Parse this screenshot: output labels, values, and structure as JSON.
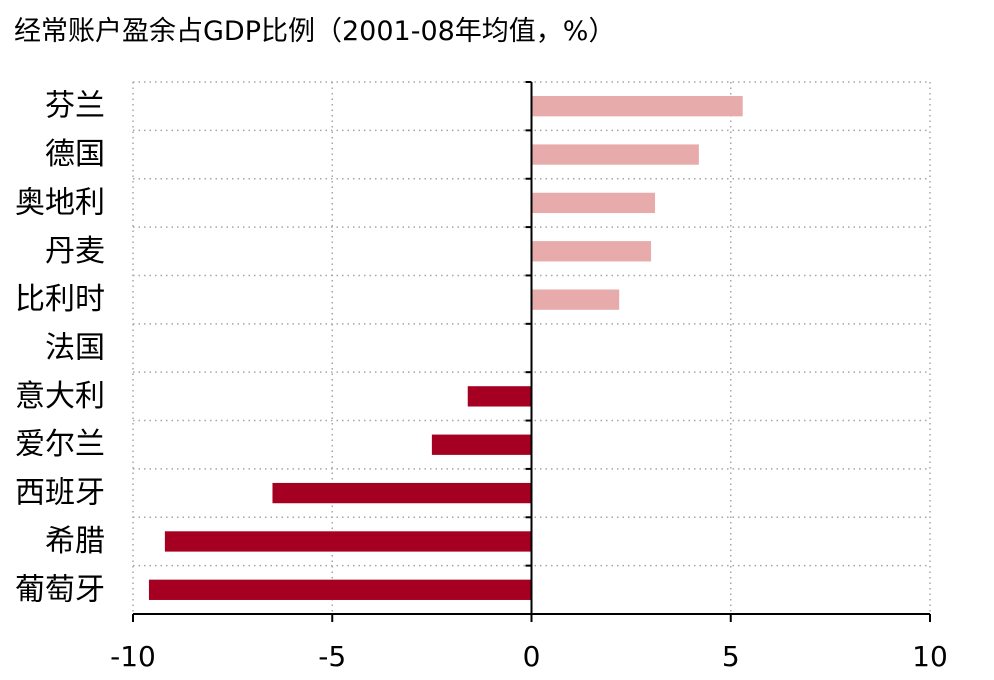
{
  "chart_data": {
    "type": "bar",
    "orientation": "horizontal",
    "title": "经常账户盈余占GDP比例（2001-08年均值，%）",
    "xlabel": "",
    "ylabel": "",
    "categories": [
      "芬兰",
      "德国",
      "奥地利",
      "丹麦",
      "比利时",
      "法国",
      "意大利",
      "爱尔兰",
      "西班牙",
      "希腊",
      "葡萄牙"
    ],
    "values": [
      5.3,
      4.2,
      3.1,
      3.0,
      2.2,
      0.0,
      -1.6,
      -2.5,
      -6.5,
      -9.2,
      -9.6
    ],
    "xlim": [
      -10,
      10
    ],
    "xticks": [
      "-10",
      "-5",
      "0",
      "5",
      "10"
    ],
    "grid": "dotted",
    "legend": "none",
    "colors": {
      "positive": "#E8ABAB",
      "negative": "#A50021",
      "axis": "#000000",
      "grid": "#A6A6A6"
    }
  }
}
